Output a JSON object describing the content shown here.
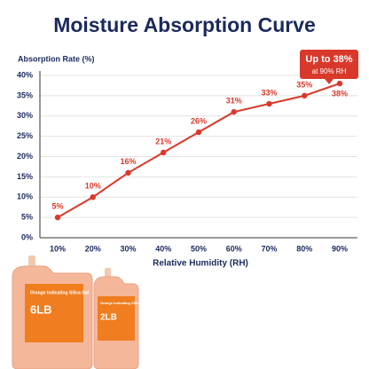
{
  "chart_data": {
    "type": "line",
    "title": "Moisture Absorption Curve",
    "y_label": "Absorption Rate (%)",
    "x_label": "Relative Humidity (RH)",
    "categories": [
      "10%",
      "20%",
      "30%",
      "40%",
      "50%",
      "60%",
      "70%",
      "80%",
      "90%"
    ],
    "values": [
      5,
      10,
      16,
      21,
      26,
      31,
      33,
      35,
      38
    ],
    "value_labels": [
      "5%",
      "10%",
      "16%",
      "21%",
      "26%",
      "31%",
      "33%",
      "35%",
      "38%"
    ],
    "color": "#d9392b",
    "ylim": [
      0,
      40
    ],
    "yticks": [
      {
        "value": 0,
        "label": "0%"
      },
      {
        "value": 5,
        "label": "5%"
      },
      {
        "value": 10,
        "label": "10%"
      },
      {
        "value": 15,
        "label": "15%"
      },
      {
        "value": 20,
        "label": "20%"
      },
      {
        "value": 25,
        "label": "25%"
      },
      {
        "value": 30,
        "label": "30%"
      },
      {
        "value": 35,
        "label": "35%"
      },
      {
        "value": 40,
        "label": "40%"
      }
    ],
    "grid": true,
    "annotation": {
      "title": "Up to 38%",
      "subtitle": "at 90% RH"
    }
  },
  "products": [
    {
      "name": "Orange Indicating Silica Gel",
      "weight": "6LB"
    },
    {
      "name": "Orange Indicating Silica Gel",
      "weight": "2LB"
    }
  ]
}
